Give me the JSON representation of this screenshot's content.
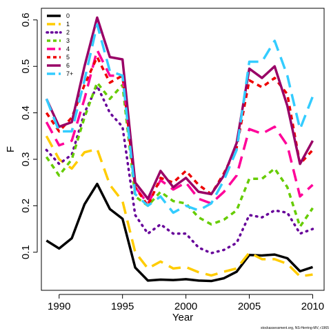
{
  "chart_data": {
    "type": "line",
    "xlabel": "Year",
    "ylabel": "F",
    "xlim": [
      1988.6,
      2010.9
    ],
    "ylim": [
      0.018,
      0.625
    ],
    "x_ticks": [
      1990,
      1995,
      2000,
      2005,
      2010
    ],
    "y_ticks": [
      0.1,
      0.2,
      0.3,
      0.4,
      0.5,
      0.6
    ],
    "legend_position": "top-left",
    "credit": "stockassessment.org, NS-Herring-MV, r1965",
    "x": [
      1989,
      1990,
      1991,
      1992,
      1993,
      1994,
      1995,
      1996,
      1997,
      1998,
      1999,
      2000,
      2001,
      2002,
      2003,
      2004,
      2005,
      2006,
      2007,
      2008,
      2009,
      2010
    ],
    "series": [
      {
        "name": "0",
        "color": "#000000",
        "dash": "solid",
        "values": [
          0.125,
          0.108,
          0.13,
          0.203,
          0.247,
          0.193,
          0.172,
          0.067,
          0.039,
          0.041,
          0.04,
          0.042,
          0.039,
          0.038,
          0.044,
          0.058,
          0.094,
          0.093,
          0.095,
          0.087,
          0.059,
          0.068
        ]
      },
      {
        "name": "1",
        "color": "#ffcc00",
        "dash": "long",
        "values": [
          0.35,
          0.3,
          0.28,
          0.315,
          0.322,
          0.245,
          0.21,
          0.1,
          0.065,
          0.08,
          0.065,
          0.068,
          0.057,
          0.05,
          0.058,
          0.065,
          0.099,
          0.085,
          0.085,
          0.075,
          0.048,
          0.052
        ]
      },
      {
        "name": "2",
        "color": "#660099",
        "dash": "dot",
        "values": [
          0.32,
          0.29,
          0.31,
          0.4,
          0.458,
          0.4,
          0.37,
          0.18,
          0.14,
          0.16,
          0.14,
          0.14,
          0.11,
          0.098,
          0.105,
          0.12,
          0.18,
          0.175,
          0.19,
          0.185,
          0.14,
          0.15
        ]
      },
      {
        "name": "3",
        "color": "#66cc00",
        "dash": "short",
        "values": [
          0.305,
          0.265,
          0.3,
          0.39,
          0.465,
          0.43,
          0.46,
          0.22,
          0.2,
          0.23,
          0.21,
          0.205,
          0.175,
          0.16,
          0.17,
          0.19,
          0.258,
          0.258,
          0.28,
          0.24,
          0.155,
          0.195
        ]
      },
      {
        "name": "4",
        "color": "#ff0099",
        "dash": "long",
        "values": [
          0.38,
          0.33,
          0.34,
          0.43,
          0.535,
          0.48,
          0.48,
          0.24,
          0.205,
          0.255,
          0.235,
          0.25,
          0.215,
          0.205,
          0.23,
          0.265,
          0.365,
          0.355,
          0.37,
          0.33,
          0.22,
          0.245
        ]
      },
      {
        "name": "5",
        "color": "#ee0000",
        "dash": "short",
        "values": [
          0.4,
          0.36,
          0.39,
          0.46,
          0.52,
          0.465,
          0.48,
          0.24,
          0.2,
          0.26,
          0.25,
          0.275,
          0.245,
          0.225,
          0.27,
          0.325,
          0.47,
          0.455,
          0.475,
          0.44,
          0.29,
          0.32
        ]
      },
      {
        "name": "6",
        "color": "#990066",
        "dash": "solid",
        "values": [
          0.43,
          0.37,
          0.38,
          0.5,
          0.605,
          0.52,
          0.515,
          0.25,
          0.215,
          0.275,
          0.24,
          0.26,
          0.23,
          0.225,
          0.265,
          0.335,
          0.495,
          0.475,
          0.5,
          0.415,
          0.29,
          0.34
        ]
      },
      {
        "name": "7+",
        "color": "#33ccff",
        "dash": "long",
        "values": [
          0.43,
          0.36,
          0.36,
          0.47,
          0.59,
          0.49,
          0.48,
          0.225,
          0.2,
          0.22,
          0.185,
          0.2,
          0.19,
          0.205,
          0.255,
          0.32,
          0.51,
          0.51,
          0.555,
          0.48,
          0.365,
          0.435
        ]
      }
    ]
  }
}
